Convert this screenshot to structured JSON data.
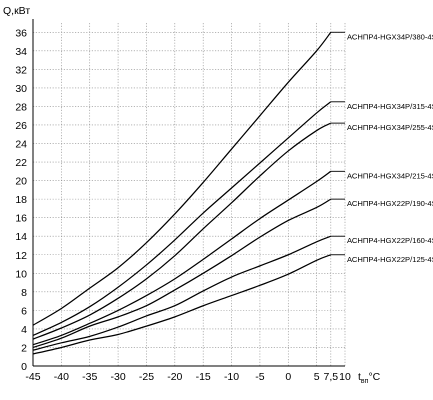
{
  "chart_data": {
    "type": "line",
    "title": "",
    "ylabel": "Q,кВт",
    "xlabel": "t",
    "xlabel_sub": "вп",
    "xlabel_unit": "°C",
    "xlim": [
      -45,
      10
    ],
    "ylim": [
      0,
      37
    ],
    "grid": true,
    "legend": "right-end labels",
    "x_ticks": [
      {
        "value": -45,
        "label": "-45"
      },
      {
        "value": -40,
        "label": "-40"
      },
      {
        "value": -35,
        "label": "-35"
      },
      {
        "value": -30,
        "label": "-30"
      },
      {
        "value": -25,
        "label": "-25"
      },
      {
        "value": -20,
        "label": "-20"
      },
      {
        "value": -15,
        "label": "-15"
      },
      {
        "value": -10,
        "label": "-10"
      },
      {
        "value": -5,
        "label": "-5"
      },
      {
        "value": 0,
        "label": "0"
      },
      {
        "value": 5,
        "label": "5"
      },
      {
        "value": 7.5,
        "label": "7,5"
      },
      {
        "value": 10,
        "label": "10"
      }
    ],
    "y_ticks": [
      0,
      2,
      4,
      6,
      8,
      10,
      12,
      14,
      16,
      18,
      20,
      22,
      24,
      26,
      28,
      30,
      32,
      34,
      36
    ],
    "x": [
      -45,
      -40,
      -35,
      -30,
      -25,
      -20,
      -15,
      -10,
      -5,
      0,
      5,
      7.5
    ],
    "series": [
      {
        "name": "АСНПР4-HGX34P/380-4S",
        "values": [
          4.4,
          6.2,
          8.4,
          10.6,
          13.3,
          16.4,
          19.8,
          23.4,
          27.0,
          30.6,
          34.0,
          36.0
        ]
      },
      {
        "name": "АСНПР4-HGX34P/315-4S",
        "values": [
          3.3,
          4.7,
          6.4,
          8.5,
          10.9,
          13.6,
          16.5,
          19.2,
          21.9,
          24.6,
          27.3,
          28.5
        ]
      },
      {
        "name": "АСНПР4-HGX34P/255-4S",
        "values": [
          2.9,
          4.1,
          5.5,
          7.3,
          9.4,
          11.9,
          14.8,
          17.6,
          20.5,
          23.2,
          25.4,
          26.2
        ]
      },
      {
        "name": "АСНПР4-HGX34P/215-4S",
        "values": [
          2.3,
          3.3,
          4.6,
          6.0,
          7.6,
          9.4,
          11.5,
          13.7,
          15.9,
          17.9,
          19.9,
          21.0
        ]
      },
      {
        "name": "АСНПР4-HGX22P/190-4S",
        "values": [
          2.0,
          3.0,
          4.3,
          5.3,
          6.5,
          8.2,
          10.0,
          11.9,
          13.9,
          15.7,
          17.1,
          18.0
        ]
      },
      {
        "name": "АСНПР4-HGX22P/160-4S",
        "values": [
          1.7,
          2.5,
          3.2,
          4.2,
          5.4,
          6.5,
          8.1,
          9.6,
          10.8,
          12.0,
          13.4,
          14.0
        ]
      },
      {
        "name": "АСНПР4-HGX22P/125-4S",
        "values": [
          1.3,
          2.0,
          2.8,
          3.4,
          4.3,
          5.3,
          6.5,
          7.6,
          8.7,
          9.9,
          11.4,
          12.0
        ]
      }
    ]
  }
}
